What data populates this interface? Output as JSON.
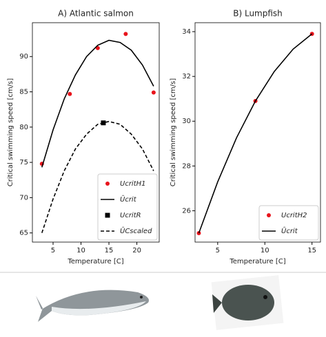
{
  "chart_data": [
    {
      "type": "line",
      "title": "A) Atlantic salmon",
      "xlabel": "Temperature [C]",
      "ylabel": "Critical swimming speed [cm/s]",
      "xlim": [
        1.3,
        24
      ],
      "xticks": [
        5,
        10,
        15,
        20
      ],
      "ylim": [
        63.7,
        94.8
      ],
      "yticks": [
        65,
        70,
        75,
        80,
        85,
        90
      ],
      "legend": "lower right",
      "series": [
        {
          "name": "UcritH1",
          "color": "#e8141c",
          "style": "point",
          "x": [
            3,
            8,
            13,
            18,
            23
          ],
          "values": [
            74.8,
            84.7,
            91.2,
            93.2,
            84.9
          ]
        },
        {
          "name": "Ûcrit",
          "color": "#000000",
          "style": "solid",
          "x": [
            3,
            5,
            7,
            9,
            11,
            13,
            15,
            17,
            19,
            21,
            23
          ],
          "values": [
            74.3,
            79.6,
            84.0,
            87.4,
            90.0,
            91.6,
            92.3,
            92.0,
            90.9,
            88.8,
            85.8
          ]
        },
        {
          "name": "UcritR",
          "color": "#000000",
          "style": "square",
          "x": [
            14
          ],
          "values": [
            80.6
          ]
        },
        {
          "name": "ÛCscaled",
          "color": "#000000",
          "style": "dashed",
          "x": [
            3,
            5,
            7,
            9,
            11,
            13,
            15,
            17,
            19,
            21,
            23
          ],
          "values": [
            65.0,
            69.8,
            73.8,
            76.9,
            79.0,
            80.4,
            80.8,
            80.4,
            79.0,
            76.9,
            73.8
          ]
        }
      ]
    },
    {
      "type": "line",
      "title": "B) Lumpfish",
      "xlabel": "Temperature [C]",
      "ylabel": "Critical swimming speed [cm/s]",
      "xlim": [
        2.6,
        15.9
      ],
      "xticks": [
        5,
        10,
        15
      ],
      "ylim": [
        24.6,
        34.4
      ],
      "yticks": [
        26,
        28,
        30,
        32,
        34
      ],
      "legend": "lower right",
      "series": [
        {
          "name": "UcritH2",
          "color": "#e8141c",
          "style": "point",
          "x": [
            3,
            9,
            15
          ],
          "values": [
            25.0,
            30.9,
            33.9
          ]
        },
        {
          "name": "Ûcrit",
          "color": "#000000",
          "style": "solid",
          "x": [
            3,
            5,
            7,
            9,
            11,
            13,
            15
          ],
          "values": [
            25.0,
            27.29,
            29.26,
            30.9,
            32.22,
            33.22,
            33.9
          ]
        }
      ]
    }
  ]
}
